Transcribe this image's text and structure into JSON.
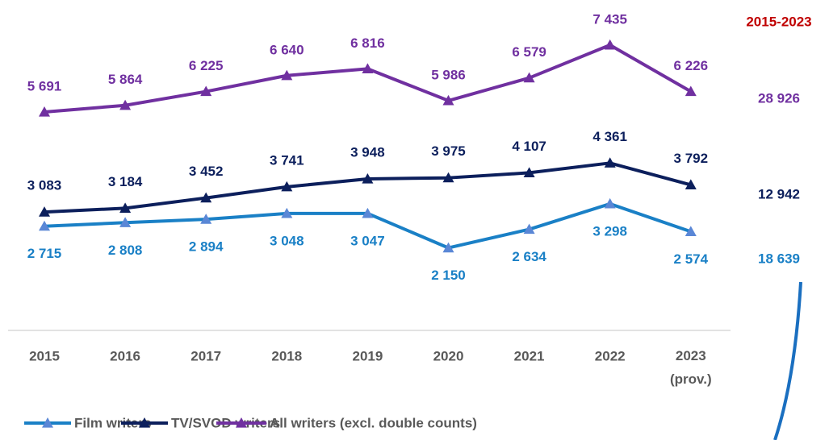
{
  "chart_data": {
    "type": "line",
    "categories": [
      "2015",
      "2016",
      "2017",
      "2018",
      "2019",
      "2020",
      "2021",
      "2022",
      "2023 (prov.)"
    ],
    "ylim": [
      0,
      8000
    ],
    "totals_title": "2015-2023",
    "series": [
      {
        "name": "Film writers",
        "color": "#1a80c6",
        "marker_color": "#5a87d6",
        "values": [
          2715,
          2808,
          2894,
          3048,
          3047,
          2150,
          2634,
          3298,
          2574
        ],
        "value_labels": [
          "2 715",
          "2 808",
          "2 894",
          "3 048",
          "3 047",
          "2 150",
          "2 634",
          "3 298",
          "2 574"
        ],
        "total": 18639,
        "total_label": "18 639"
      },
      {
        "name": "TV/SVOD writers",
        "color": "#0c1f5c",
        "marker_color": "#0c1f5c",
        "values": [
          3083,
          3184,
          3452,
          3741,
          3948,
          3975,
          4107,
          4361,
          3792
        ],
        "value_labels": [
          "3 083",
          "3 184",
          "3 452",
          "3 741",
          "3 948",
          "3 975",
          "4 107",
          "4 361",
          "3 792"
        ],
        "total": 12942,
        "total_label": "12 942"
      },
      {
        "name": "All writers (excl. double counts)",
        "color": "#7030a0",
        "marker_color": "#7030a0",
        "values": [
          5691,
          5864,
          6225,
          6640,
          6816,
          5986,
          6579,
          7435,
          6226
        ],
        "value_labels": [
          "5 691",
          "5 864",
          "6 225",
          "6 640",
          "6 816",
          "5 986",
          "6 579",
          "7 435",
          "6 226"
        ],
        "total": 28926,
        "total_label": "28 926"
      }
    ]
  }
}
